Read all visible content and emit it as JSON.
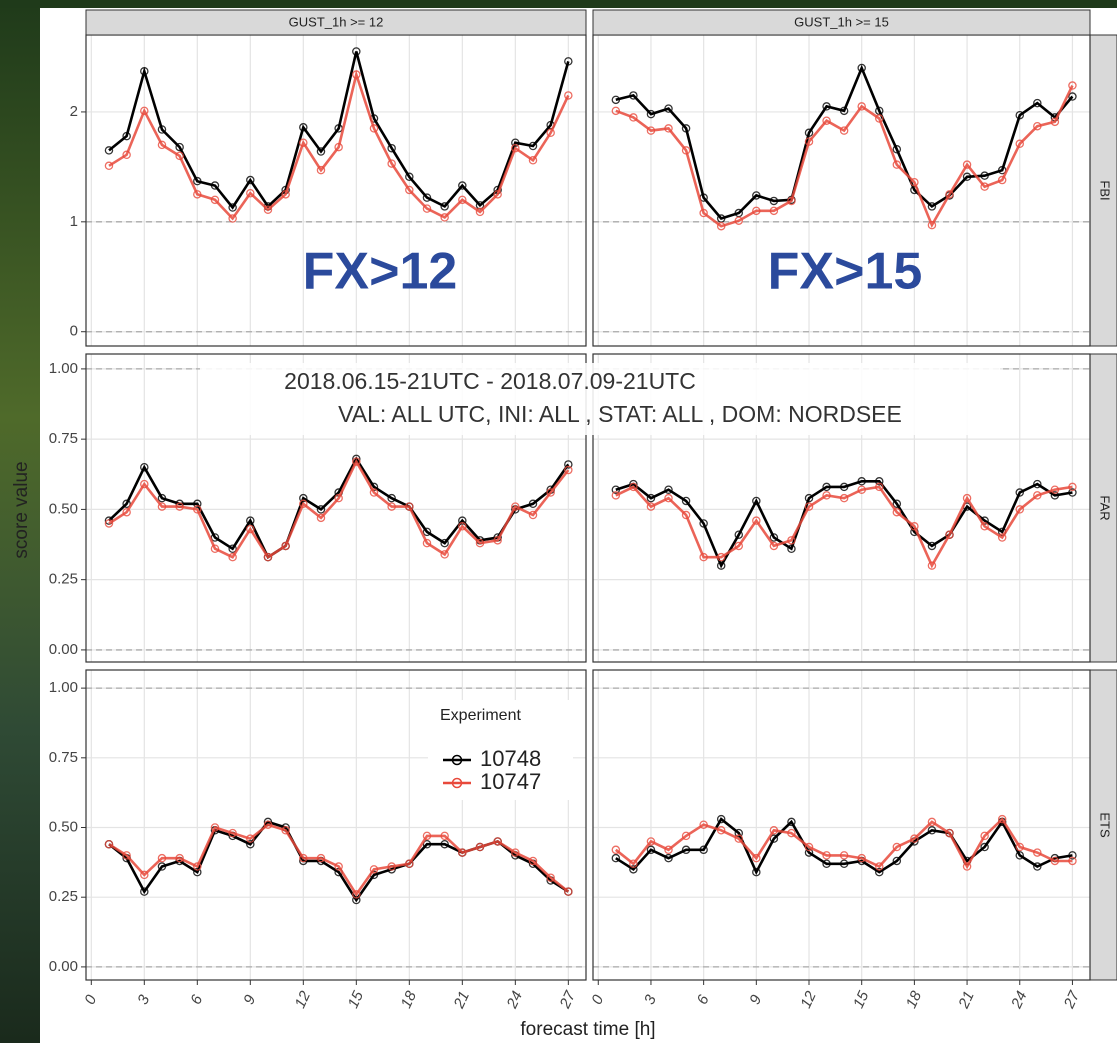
{
  "chart_data": {
    "type": "line",
    "x_label": "forecast time [h]",
    "y_label": "score value",
    "legend_title": "Experiment",
    "annotations": [
      "FX>12",
      "FX>15"
    ],
    "subtitle_lines": [
      "2018.06.15-21UTC - 2018.07.09-21UTC",
      "VAL: ALL UTC, INI:  ALL , STAT:  ALL , DOM: NORDSEE"
    ],
    "columns": [
      "GUST_1h >= 12",
      "GUST_1h >= 15"
    ],
    "rows": [
      {
        "label": "FBI",
        "ylim": [
          -0.13,
          2.7
        ],
        "yticks": [
          0,
          1,
          2
        ]
      },
      {
        "label": "FAR",
        "ylim": [
          -0.043,
          1.053
        ],
        "yticks": [
          {
            "value": 0,
            "label": "0.00"
          },
          {
            "value": 0.25,
            "label": "0.25"
          },
          {
            "value": 0.5,
            "label": "0.50"
          },
          {
            "value": 0.75,
            "label": "0.75"
          },
          {
            "value": 1,
            "label": "1.00"
          }
        ]
      },
      {
        "label": "ETS",
        "ylim": [
          -0.047,
          1.065
        ],
        "yticks": [
          {
            "value": 0,
            "label": "0.00"
          },
          {
            "value": 0.25,
            "label": "0.25"
          },
          {
            "value": 0.5,
            "label": "0.50"
          },
          {
            "value": 0.75,
            "label": "0.75"
          },
          {
            "value": 1,
            "label": "1.00"
          }
        ]
      }
    ],
    "reference_lines": [
      0,
      1
    ],
    "grid": true,
    "x": [
      1,
      2,
      3,
      4,
      5,
      6,
      7,
      8,
      9,
      10,
      11,
      12,
      13,
      14,
      15,
      16,
      17,
      18,
      19,
      20,
      21,
      22,
      23,
      24,
      25,
      26,
      27
    ],
    "xlim": [
      -0.3,
      28
    ],
    "xticks": [
      0,
      3,
      6,
      9,
      12,
      15,
      18,
      21,
      24,
      27
    ],
    "series": [
      {
        "name": "10748",
        "color": "#000000"
      },
      {
        "name": "10747",
        "color": "#e8493b"
      }
    ],
    "panels": [
      {
        "series": [
          {
            "values": [
              1.65,
              1.78,
              2.37,
              1.84,
              1.68,
              1.37,
              1.33,
              1.13,
              1.38,
              1.14,
              1.29,
              1.86,
              1.64,
              1.85,
              2.55,
              1.94,
              1.67,
              1.41,
              1.22,
              1.14,
              1.33,
              1.15,
              1.29,
              1.72,
              1.69,
              1.88,
              2.46
            ]
          },
          {
            "values": [
              1.51,
              1.61,
              2.01,
              1.7,
              1.6,
              1.25,
              1.2,
              1.03,
              1.26,
              1.11,
              1.25,
              1.72,
              1.47,
              1.68,
              2.34,
              1.85,
              1.53,
              1.29,
              1.12,
              1.04,
              1.2,
              1.09,
              1.25,
              1.67,
              1.56,
              1.81,
              2.15
            ]
          }
        ]
      },
      {
        "series": [
          {
            "values": [
              2.11,
              2.15,
              1.98,
              2.03,
              1.85,
              1.22,
              1.03,
              1.08,
              1.24,
              1.19,
              1.2,
              1.81,
              2.05,
              2.01,
              2.4,
              2.01,
              1.66,
              1.29,
              1.14,
              1.24,
              1.41,
              1.42,
              1.47,
              1.97,
              2.08,
              1.95,
              2.14
            ]
          },
          {
            "values": [
              2.01,
              1.95,
              1.83,
              1.85,
              1.65,
              1.08,
              0.96,
              1.01,
              1.1,
              1.1,
              1.19,
              1.73,
              1.92,
              1.83,
              2.05,
              1.94,
              1.52,
              1.36,
              0.97,
              1.25,
              1.52,
              1.32,
              1.38,
              1.71,
              1.87,
              1.91,
              2.24
            ]
          }
        ]
      },
      {
        "series": [
          {
            "values": [
              0.46,
              0.52,
              0.65,
              0.54,
              0.52,
              0.52,
              0.4,
              0.36,
              0.46,
              0.33,
              0.37,
              0.54,
              0.5,
              0.56,
              0.68,
              0.58,
              0.54,
              0.51,
              0.42,
              0.38,
              0.46,
              0.39,
              0.4,
              0.5,
              0.52,
              0.57,
              0.66
            ]
          },
          {
            "values": [
              0.45,
              0.49,
              0.59,
              0.51,
              0.51,
              0.5,
              0.36,
              0.33,
              0.43,
              0.33,
              0.37,
              0.52,
              0.47,
              0.54,
              0.67,
              0.56,
              0.51,
              0.51,
              0.38,
              0.34,
              0.44,
              0.38,
              0.39,
              0.51,
              0.48,
              0.56,
              0.64
            ]
          }
        ]
      },
      {
        "series": [
          {
            "values": [
              0.57,
              0.59,
              0.54,
              0.57,
              0.53,
              0.45,
              0.3,
              0.41,
              0.53,
              0.4,
              0.36,
              0.54,
              0.58,
              0.58,
              0.6,
              0.6,
              0.52,
              0.42,
              0.37,
              0.41,
              0.51,
              0.46,
              0.42,
              0.56,
              0.59,
              0.55,
              0.56
            ]
          },
          {
            "values": [
              0.55,
              0.58,
              0.51,
              0.54,
              0.48,
              0.33,
              0.33,
              0.37,
              0.46,
              0.37,
              0.39,
              0.51,
              0.55,
              0.54,
              0.57,
              0.58,
              0.49,
              0.44,
              0.3,
              0.41,
              0.54,
              0.44,
              0.4,
              0.5,
              0.55,
              0.57,
              0.58
            ]
          }
        ]
      },
      {
        "series": [
          {
            "values": [
              0.44,
              0.39,
              0.27,
              0.36,
              0.38,
              0.34,
              0.49,
              0.47,
              0.44,
              0.52,
              0.5,
              0.38,
              0.38,
              0.34,
              0.24,
              0.33,
              0.35,
              0.37,
              0.44,
              0.44,
              0.41,
              0.43,
              0.45,
              0.4,
              0.37,
              0.31,
              0.27
            ]
          },
          {
            "values": [
              0.44,
              0.4,
              0.33,
              0.39,
              0.39,
              0.36,
              0.5,
              0.48,
              0.46,
              0.51,
              0.49,
              0.39,
              0.39,
              0.36,
              0.26,
              0.35,
              0.36,
              0.37,
              0.47,
              0.47,
              0.41,
              0.43,
              0.45,
              0.41,
              0.38,
              0.32,
              0.27
            ]
          }
        ]
      },
      {
        "series": [
          {
            "values": [
              0.39,
              0.35,
              0.42,
              0.39,
              0.42,
              0.42,
              0.53,
              0.48,
              0.34,
              0.46,
              0.52,
              0.41,
              0.37,
              0.37,
              0.38,
              0.34,
              0.38,
              0.45,
              0.49,
              0.48,
              0.38,
              0.43,
              0.52,
              0.4,
              0.36,
              0.39,
              0.4
            ]
          },
          {
            "values": [
              0.42,
              0.37,
              0.45,
              0.42,
              0.47,
              0.51,
              0.49,
              0.46,
              0.39,
              0.49,
              0.48,
              0.43,
              0.4,
              0.4,
              0.39,
              0.36,
              0.43,
              0.46,
              0.52,
              0.48,
              0.36,
              0.47,
              0.53,
              0.43,
              0.41,
              0.38,
              0.38
            ]
          }
        ]
      }
    ]
  }
}
